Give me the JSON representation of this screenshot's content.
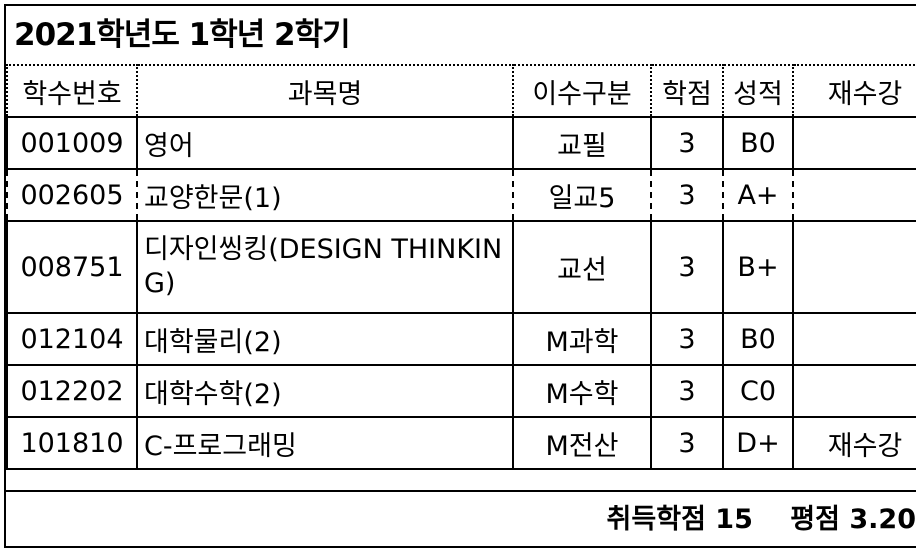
{
  "title": "2021학년도 1학년 2학기",
  "columns": [
    "학수번호",
    "과목명",
    "이수구분",
    "학점",
    "성적",
    "재수강"
  ],
  "rows": [
    {
      "code": "001009",
      "name": "영어",
      "type": "교필",
      "credit": "3",
      "grade": "B0",
      "retake": ""
    },
    {
      "code": "002605",
      "name": "교양한문(1)",
      "type": "일교5",
      "credit": "3",
      "grade": "A+",
      "retake": ""
    },
    {
      "code": "008751",
      "name": "디자인씽킹(DESIGN THINKING)",
      "type": "교선",
      "credit": "3",
      "grade": "B+",
      "retake": ""
    },
    {
      "code": "012104",
      "name": "대학물리(2)",
      "type": "M과학",
      "credit": "3",
      "grade": "B0",
      "retake": ""
    },
    {
      "code": "012202",
      "name": "대학수학(2)",
      "type": "M수학",
      "credit": "3",
      "grade": "C0",
      "retake": ""
    },
    {
      "code": "101810",
      "name": "C-프로그래밍",
      "type": "M전산",
      "credit": "3",
      "grade": "D+",
      "retake": "재수강"
    }
  ],
  "footer": {
    "earned_credits": "취득학점 15",
    "gpa": "평점 3.20"
  }
}
